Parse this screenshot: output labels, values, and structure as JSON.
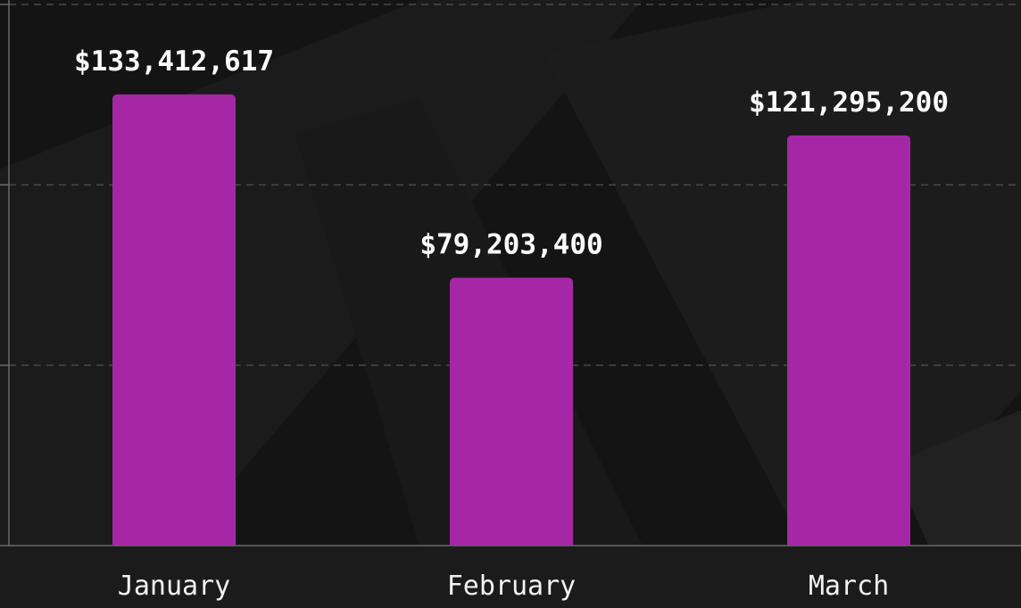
{
  "chart_data": {
    "type": "bar",
    "categories": [
      "January",
      "February",
      "March"
    ],
    "values": [
      133412617,
      79203400,
      121295200
    ],
    "data_labels": [
      "$133,412,617",
      "$79,203,400",
      "$121,295,200"
    ],
    "ylim": [
      0,
      160000000
    ],
    "grid": true,
    "grid_style": "dashed",
    "colors": {
      "bar": "#a627a6",
      "background": "#151415",
      "background_shape": "#1f1e1f",
      "grid": "#4a4a4a",
      "axis": "#6a6a6a",
      "label_text": "#ffffff"
    }
  }
}
